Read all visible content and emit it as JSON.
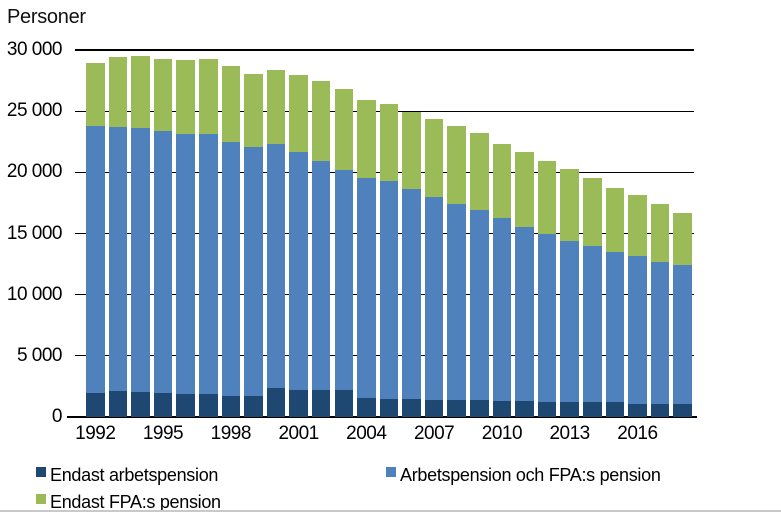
{
  "title": "Personer",
  "colors": {
    "endast_arbetspension": "#1E4872",
    "arbetspension_och_fpa": "#4F81BD",
    "endast_fpa": "#9BBB59",
    "gridline": "#000000",
    "axis_line": "#000000",
    "divider_line": "#C9C9C9",
    "background": "#FFFFFF"
  },
  "y_axis": {
    "tick_labels": [
      "30 000",
      "25 000",
      "20 000",
      "15 000",
      "10 000",
      "5 000",
      "0"
    ],
    "tick_values": [
      30000,
      25000,
      20000,
      15000,
      10000,
      5000,
      0
    ]
  },
  "x_axis": {
    "tick_labels": [
      "1992",
      "1995",
      "1998",
      "2001",
      "2004",
      "2007",
      "2010",
      "2013",
      "2016"
    ]
  },
  "legend": {
    "items": [
      {
        "label": "Endast arbetspension",
        "color": "#1E4872"
      },
      {
        "label": "Arbetspension och FPA:s pension",
        "color": "#4F81BD"
      },
      {
        "label": "Endast FPA:s pension",
        "color": "#9BBB59"
      }
    ]
  },
  "chart_data": {
    "type": "bar",
    "stacked": true,
    "title": "Personer",
    "xlabel": "",
    "ylabel": "Personer",
    "ylim": [
      0,
      30000
    ],
    "grid": true,
    "gridline_step": 5000,
    "legend_position": "bottom",
    "categories": [
      1992,
      1993,
      1994,
      1995,
      1996,
      1997,
      1998,
      1999,
      2000,
      2001,
      2002,
      2003,
      2004,
      2005,
      2006,
      2007,
      2008,
      2009,
      2010,
      2011,
      2012,
      2013,
      2014,
      2015,
      2016,
      2017,
      2018
    ],
    "series": [
      {
        "name": "Endast arbetspension",
        "color": "#1E4872",
        "values": [
          1950,
          2100,
          2050,
          2000,
          1900,
          1850,
          1750,
          1700,
          2350,
          2250,
          2250,
          2200,
          1550,
          1500,
          1450,
          1400,
          1400,
          1400,
          1300,
          1300,
          1250,
          1250,
          1200,
          1200,
          1100,
          1100,
          1100
        ]
      },
      {
        "name": "Arbetspension och FPA:s pension",
        "color": "#4F81BD",
        "values": [
          21850,
          21650,
          21600,
          21400,
          21250,
          21250,
          20750,
          20350,
          20000,
          19450,
          18700,
          18000,
          17950,
          17800,
          17200,
          16550,
          16050,
          15500,
          14950,
          14250,
          13700,
          13150,
          12800,
          12300,
          12050,
          11600,
          11300
        ]
      },
      {
        "name": "Endast FPA:s pension",
        "color": "#9BBB59",
        "values": [
          5150,
          5650,
          5850,
          5900,
          6050,
          6200,
          6200,
          6000,
          6000,
          6250,
          6550,
          6600,
          6450,
          6300,
          6300,
          6400,
          6300,
          6350,
          6100,
          6150,
          6000,
          5850,
          5550,
          5250,
          5000,
          4700,
          4250
        ]
      }
    ]
  }
}
